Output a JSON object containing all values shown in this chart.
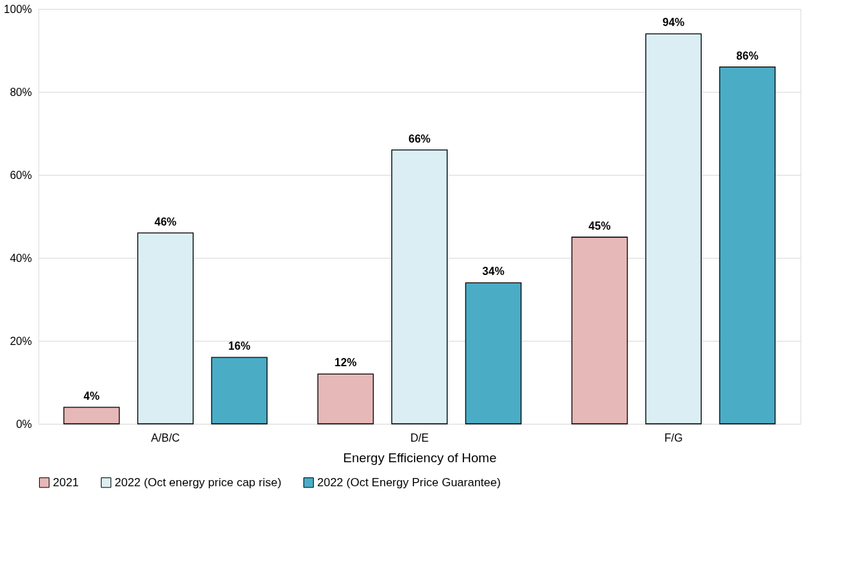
{
  "chart_data": {
    "type": "bar",
    "xlabel": "Energy Efficiency of Home",
    "categories": [
      "A/B/C",
      "D/E",
      "F/G"
    ],
    "series": [
      {
        "name": "2021",
        "color": "#e6b8b7",
        "values": [
          4,
          12,
          45
        ],
        "value_labels": [
          "4%",
          "12%",
          "45%"
        ]
      },
      {
        "name": "2022 (Oct energy price cap rise)",
        "color": "#daeef3",
        "values": [
          46,
          66,
          94
        ],
        "value_labels": [
          "46%",
          "66%",
          "94%"
        ]
      },
      {
        "name": "2022 (Oct Energy Price Guarantee)",
        "color": "#4bacc6",
        "values": [
          16,
          34,
          86
        ],
        "value_labels": [
          "16%",
          "34%",
          "86%"
        ]
      }
    ],
    "ylim": [
      0,
      100
    ],
    "yticks": [
      {
        "value": 0,
        "label": "0%"
      },
      {
        "value": 20,
        "label": "20%"
      },
      {
        "value": 40,
        "label": "40%"
      },
      {
        "value": 60,
        "label": "60%"
      },
      {
        "value": 80,
        "label": "80%"
      },
      {
        "value": 100,
        "label": "100%"
      }
    ],
    "grid": "y",
    "legend": "bottom"
  }
}
